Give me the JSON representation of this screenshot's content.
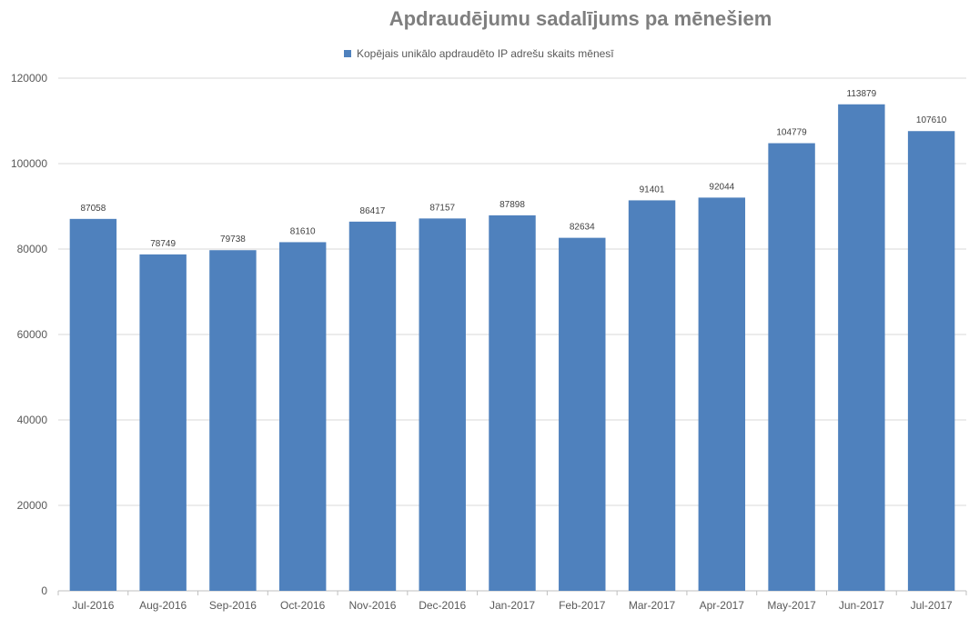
{
  "chart_data": {
    "type": "bar",
    "title": "Apdraudējumu sadalījums pa mēnešiem",
    "legend": "top",
    "grid": true,
    "ylim": [
      0,
      120000
    ],
    "y_ticks": [
      0,
      20000,
      40000,
      60000,
      80000,
      100000,
      120000
    ],
    "y_tick_labels": [
      "0",
      "20000",
      "40000",
      "60000",
      "80000",
      "100000",
      "120000"
    ],
    "categories": [
      "Jul-2016",
      "Aug-2016",
      "Sep-2016",
      "Oct-2016",
      "Nov-2016",
      "Dec-2016",
      "Jan-2017",
      "Feb-2017",
      "Mar-2017",
      "Apr-2017",
      "May-2017",
      "Jun-2017",
      "Jul-2017"
    ],
    "series": [
      {
        "name": "Kopējais unikālo apdraudēto IP adrešu skaits mēnesī",
        "color": "#4f81bd",
        "values": [
          87058,
          78749,
          79738,
          81610,
          86417,
          87157,
          87898,
          82634,
          91401,
          92044,
          104779,
          113879,
          107610
        ]
      }
    ]
  }
}
